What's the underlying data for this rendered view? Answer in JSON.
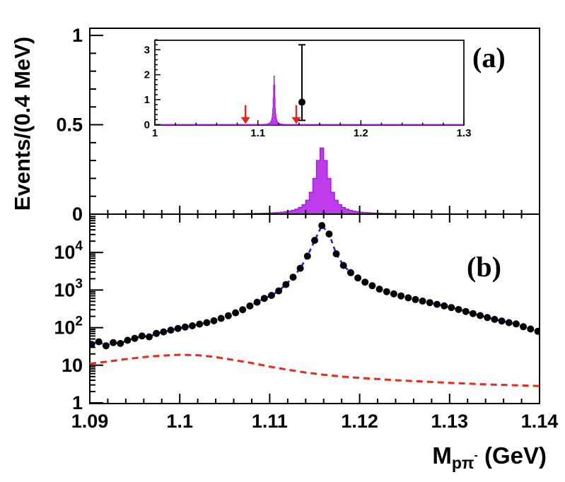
{
  "figure": {
    "panel_a_label": "(a)",
    "panel_b_label": "(b)",
    "y_axis_title": "Events/(0.4 MeV)",
    "x_axis_title": {
      "main": "M",
      "sub": "pπ",
      "sup": "-",
      "unit": " (GeV)"
    }
  },
  "chart_data": [
    {
      "id": "panel-a-histogram",
      "type": "bar",
      "title": "",
      "xlabel": "M_ppi- (GeV)",
      "ylabel": "Events/(0.4 MeV)",
      "xlim": [
        1.09,
        1.14
      ],
      "ylim": [
        0,
        1.04
      ],
      "grid": false,
      "x_major_ticks": [
        1.09,
        1.1,
        1.11,
        1.12,
        1.13,
        1.14
      ],
      "x_minor_step": 0.002,
      "yticks": [
        {
          "v": 0,
          "label": "0"
        },
        {
          "v": 0.5,
          "label": "0.5"
        },
        {
          "v": 1,
          "label": "1"
        }
      ],
      "y_minor_step": 0.1,
      "bins": {
        "start": 1.1036,
        "width": 0.0004,
        "heights": [
          0.0013,
          0.0014,
          0.0015,
          0.0016,
          0.0018,
          0.0019,
          0.0021,
          0.0023,
          0.0025,
          0.0028,
          0.0031,
          0.0035,
          0.0039,
          0.0044,
          0.005,
          0.0057,
          0.0066,
          0.0078,
          0.0092,
          0.011,
          0.0134,
          0.0168,
          0.0215,
          0.028,
          0.038,
          0.053,
          0.078,
          0.122,
          0.2,
          0.3,
          0.37,
          0.3,
          0.2,
          0.122,
          0.078,
          0.053,
          0.038,
          0.028,
          0.0215,
          0.0168,
          0.0134,
          0.011,
          0.0092,
          0.0078,
          0.0066,
          0.0057,
          0.005,
          0.0044,
          0.0039,
          0.0035,
          0.0031,
          0.0028,
          0.0025,
          0.0023,
          0.0021,
          0.0019,
          0.0018,
          0.0016,
          0.0015,
          0.0014,
          0.0013
        ]
      },
      "peak_center": 1.1157,
      "peak_height": 0.37,
      "fill": "#BE3CEB",
      "edge": "#A21BD4"
    },
    {
      "id": "inset-histogram",
      "type": "bar",
      "xlim": [
        1.0,
        1.3
      ],
      "ylim": [
        0,
        3.4
      ],
      "xticks": [
        {
          "v": 1.0,
          "label": "1"
        },
        {
          "v": 1.1,
          "label": "1.1"
        },
        {
          "v": 1.2,
          "label": "1.2"
        },
        {
          "v": 1.3,
          "label": "1.3"
        }
      ],
      "x_minor_step": 0.02,
      "yticks": [
        {
          "v": 0,
          "label": "0"
        },
        {
          "v": 1,
          "label": "1"
        },
        {
          "v": 2,
          "label": "2"
        },
        {
          "v": 3,
          "label": "3"
        }
      ],
      "y_minor_step": 0.2,
      "hist_scale": 5.27,
      "peak_height": 1.95,
      "arrows": [
        {
          "x": 1.088,
          "y_top": 0.78,
          "y_tip": 0.03
        },
        {
          "x": 1.1373,
          "y_top": 0.78,
          "y_tip": 0.03
        }
      ],
      "data_point": {
        "x": 1.1428,
        "y": 0.9,
        "err_low": 0.17,
        "err_high": 3.2
      },
      "arrow_color": "#E1251B"
    },
    {
      "id": "panel-b",
      "type": "scatter",
      "ylog": true,
      "xlim": [
        1.09,
        1.14
      ],
      "ylim": [
        1,
        95000
      ],
      "grid": false,
      "legend": "none",
      "xticks": [
        {
          "v": 1.09,
          "label": "1.09"
        },
        {
          "v": 1.1,
          "label": "1.1"
        },
        {
          "v": 1.11,
          "label": "1.11"
        },
        {
          "v": 1.12,
          "label": "1.12"
        },
        {
          "v": 1.13,
          "label": "1.13"
        },
        {
          "v": 1.14,
          "label": "1.14"
        }
      ],
      "x_minor_step": 0.002,
      "yticks": [
        {
          "v": 1,
          "label": "1"
        },
        {
          "v": 10,
          "label": "10"
        },
        {
          "v": 100,
          "label": "10",
          "exp": "2"
        },
        {
          "v": 1000,
          "label": "10",
          "exp": "3"
        },
        {
          "v": 10000,
          "label": "10",
          "exp": "4"
        }
      ],
      "series": [
        {
          "name": "data",
          "marker": "circle",
          "marker_radius": 5,
          "color": "#000000",
          "points": [
            [
              1.0902,
              36
            ],
            [
              1.091,
              42
            ],
            [
              1.0918,
              33
            ],
            [
              1.0926,
              40
            ],
            [
              1.0934,
              38
            ],
            [
              1.0942,
              46
            ],
            [
              1.095,
              52
            ],
            [
              1.0958,
              60
            ],
            [
              1.0966,
              57
            ],
            [
              1.0974,
              70
            ],
            [
              1.0982,
              77
            ],
            [
              1.099,
              86
            ],
            [
              1.0998,
              95
            ],
            [
              1.1006,
              104
            ],
            [
              1.1014,
              112
            ],
            [
              1.1022,
              124
            ],
            [
              1.103,
              136
            ],
            [
              1.1038,
              152
            ],
            [
              1.1046,
              176
            ],
            [
              1.1054,
              208
            ],
            [
              1.1062,
              248
            ],
            [
              1.107,
              300
            ],
            [
              1.1078,
              378
            ],
            [
              1.1086,
              475
            ],
            [
              1.1094,
              600
            ],
            [
              1.1102,
              720
            ],
            [
              1.111,
              950
            ],
            [
              1.1118,
              1400
            ],
            [
              1.1126,
              2200
            ],
            [
              1.1134,
              3800
            ],
            [
              1.1142,
              8000
            ],
            [
              1.115,
              21000
            ],
            [
              1.1158,
              52000
            ],
            [
              1.1166,
              31000
            ],
            [
              1.1174,
              9200
            ],
            [
              1.1182,
              4500
            ],
            [
              1.119,
              2900
            ],
            [
              1.1198,
              2100
            ],
            [
              1.1206,
              1620
            ],
            [
              1.1214,
              1300
            ],
            [
              1.1222,
              1060
            ],
            [
              1.123,
              905
            ],
            [
              1.1238,
              790
            ],
            [
              1.1246,
              698
            ],
            [
              1.1254,
              622
            ],
            [
              1.1262,
              560
            ],
            [
              1.127,
              508
            ],
            [
              1.1278,
              462
            ],
            [
              1.1286,
              418
            ],
            [
              1.1294,
              380
            ],
            [
              1.1302,
              342
            ],
            [
              1.131,
              304
            ],
            [
              1.1318,
              270
            ],
            [
              1.1326,
              237
            ],
            [
              1.1334,
              210
            ],
            [
              1.1342,
              186
            ],
            [
              1.135,
              166
            ],
            [
              1.1358,
              150
            ],
            [
              1.1366,
              136
            ],
            [
              1.1374,
              126
            ],
            [
              1.1382,
              106
            ],
            [
              1.139,
              92
            ],
            [
              1.1398,
              80
            ]
          ]
        },
        {
          "name": "fit",
          "line": "dashed",
          "color": "#1F1FFF",
          "follows": "data"
        },
        {
          "name": "background",
          "line": "dashed",
          "color": "#F3261A",
          "points": [
            [
              1.09,
              11
            ],
            [
              1.092,
              12.5
            ],
            [
              1.094,
              14.5
            ],
            [
              1.096,
              16.5
            ],
            [
              1.098,
              18
            ],
            [
              1.1,
              19
            ],
            [
              1.102,
              18.5
            ],
            [
              1.104,
              16.5
            ],
            [
              1.106,
              13.8
            ],
            [
              1.108,
              11.5
            ],
            [
              1.11,
              9.2
            ],
            [
              1.112,
              7.6
            ],
            [
              1.114,
              6.4
            ],
            [
              1.116,
              5.6
            ],
            [
              1.118,
              5.0
            ],
            [
              1.12,
              4.6
            ],
            [
              1.122,
              4.3
            ],
            [
              1.124,
              4.0
            ],
            [
              1.126,
              3.8
            ],
            [
              1.128,
              3.6
            ],
            [
              1.13,
              3.4
            ],
            [
              1.132,
              3.25
            ],
            [
              1.134,
              3.1
            ],
            [
              1.136,
              3.0
            ],
            [
              1.138,
              2.9
            ],
            [
              1.14,
              2.8
            ]
          ]
        }
      ]
    }
  ]
}
